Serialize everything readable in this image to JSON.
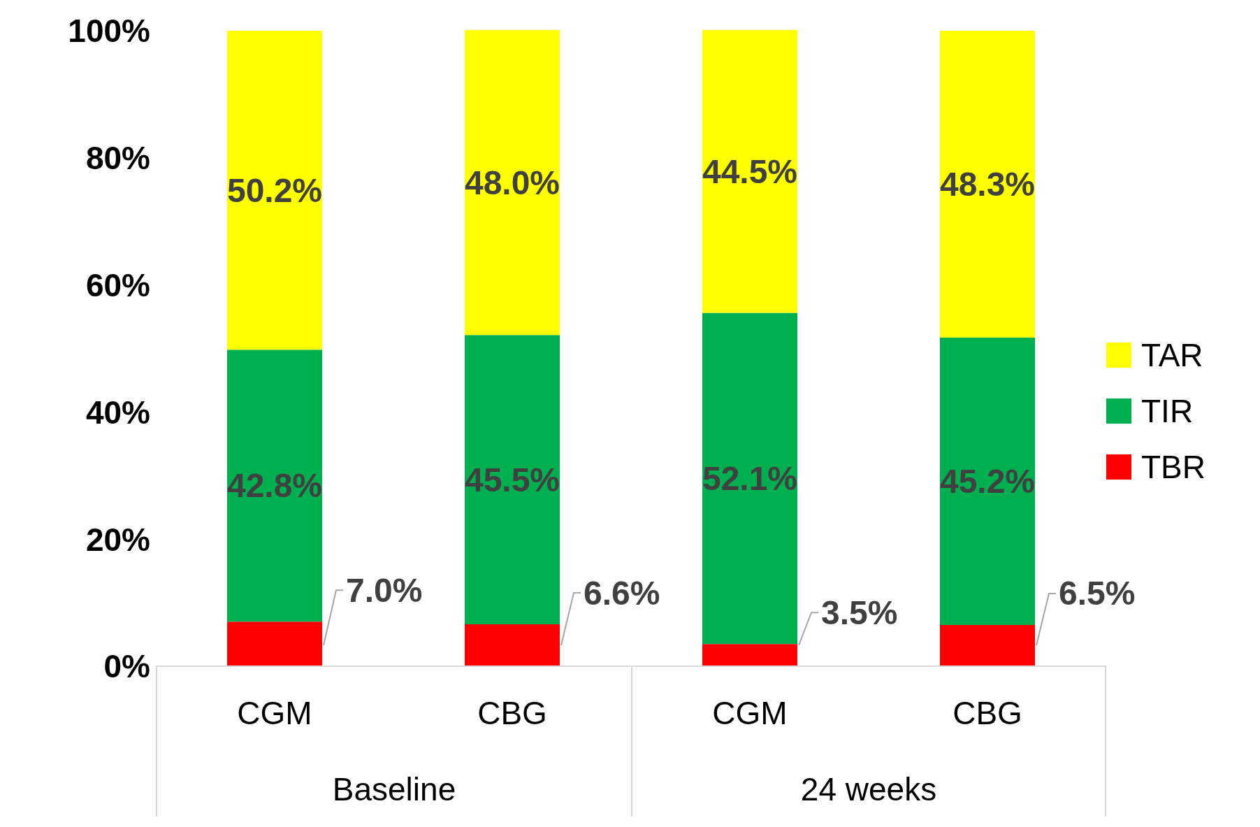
{
  "chart_data": {
    "type": "bar",
    "stacked": true,
    "categories": [
      "CGM",
      "CBG",
      "CGM",
      "CBG"
    ],
    "series": [
      {
        "name": "TBR",
        "color": "#ff0000",
        "values": [
          7.0,
          6.6,
          3.5,
          6.5
        ],
        "value_labels": [
          "7.0%",
          "6.6%",
          "3.5%",
          "6.5%"
        ]
      },
      {
        "name": "TIR",
        "color": "#00b050",
        "values": [
          42.8,
          45.5,
          52.1,
          45.2
        ],
        "value_labels": [
          "42.8%",
          "45.5%",
          "52.1%",
          "45.2%"
        ]
      },
      {
        "name": "TAR",
        "color": "#ffff00",
        "values": [
          50.2,
          48.0,
          44.5,
          48.3
        ],
        "value_labels": [
          "50.2%",
          "48.0%",
          "44.5%",
          "48.3%"
        ]
      }
    ],
    "ylim": [
      0,
      100.1
    ],
    "yticks": [
      {
        "value": 0,
        "label": "0%"
      },
      {
        "value": 20,
        "label": "20%"
      },
      {
        "value": 40,
        "label": "40%"
      },
      {
        "value": 60,
        "label": "60%"
      },
      {
        "value": 80,
        "label": "80%"
      },
      {
        "value": 100,
        "label": "100%"
      }
    ],
    "grid": false,
    "legend": "right",
    "annotations": [
      "Baseline",
      "24 weeks"
    ]
  }
}
